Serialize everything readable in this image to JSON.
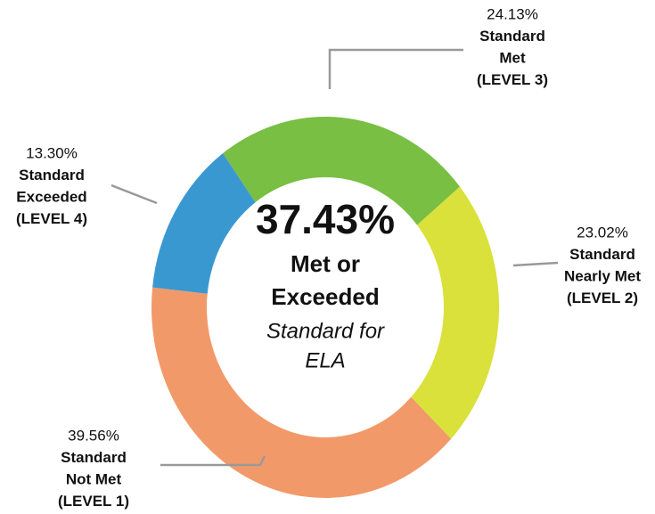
{
  "chart_data": {
    "type": "donut",
    "center_value": "37.43%",
    "center_lines": [
      "Met or",
      "Exceeded"
    ],
    "center_note": [
      "Standard for",
      "ELA"
    ],
    "values": [
      13.3,
      24.13,
      23.02,
      39.56
    ],
    "value_labels": [
      "13.30%",
      "24.13%",
      "23.02%",
      "39.56%"
    ],
    "labels": [
      [
        "Standard",
        "Exceeded",
        "(LEVEL 4)"
      ],
      [
        "Standard",
        "Met",
        "(LEVEL 3)"
      ],
      [
        "Standard",
        "Nearly Met",
        "(LEVEL 2)"
      ],
      [
        "Standard",
        "Not Met",
        "(LEVEL 1)"
      ]
    ],
    "colors": [
      "#3a98d1",
      "#79bf43",
      "#d9e13a",
      "#f2996a"
    ]
  }
}
